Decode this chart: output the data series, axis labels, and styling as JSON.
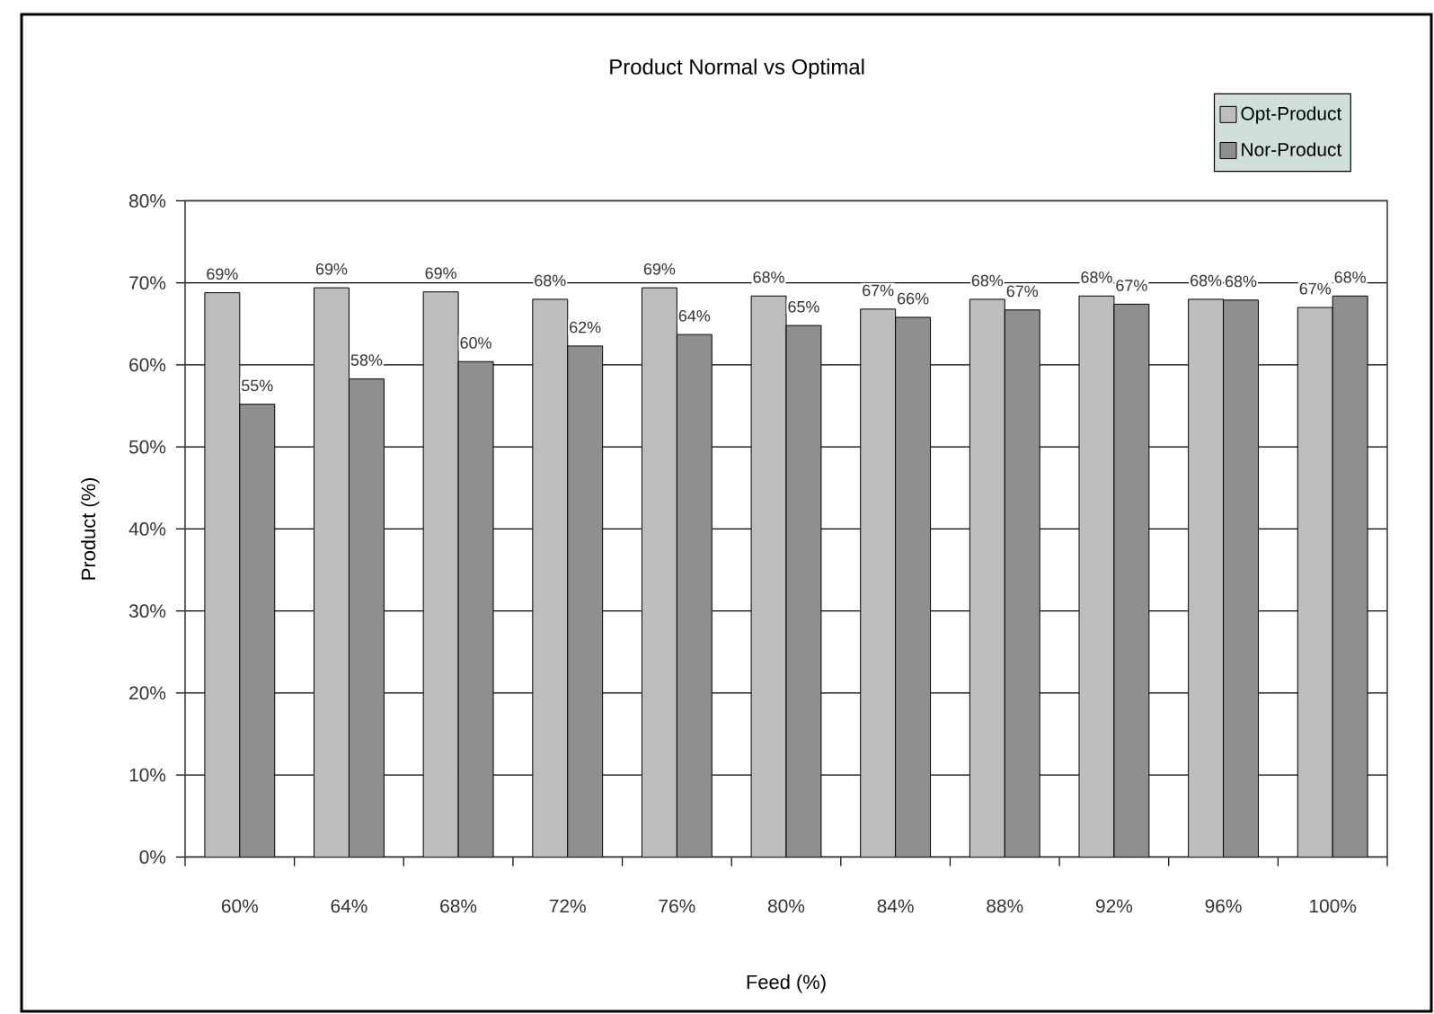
{
  "chart_data": {
    "type": "bar",
    "title": "Product Normal vs Optimal",
    "xlabel": "Feed (%)",
    "ylabel": "Product (%)",
    "categories": [
      "60%",
      "64%",
      "68%",
      "72%",
      "76%",
      "80%",
      "84%",
      "88%",
      "92%",
      "96%",
      "100%"
    ],
    "series": [
      {
        "name": "Opt-Product",
        "color": "#bdbdbd",
        "values": [
          68.8,
          69.4,
          68.9,
          68.0,
          69.4,
          68.4,
          66.8,
          68.0,
          68.4,
          68.0,
          67.0
        ],
        "value_labels": [
          "69%",
          "69%",
          "69%",
          "68%",
          "69%",
          "68%",
          "67%",
          "68%",
          "68%",
          "68%",
          "67%"
        ]
      },
      {
        "name": "Nor-Product",
        "color": "#8f8f8f",
        "values": [
          55.2,
          58.3,
          60.4,
          62.3,
          63.7,
          64.8,
          65.8,
          66.7,
          67.4,
          67.9,
          68.4
        ],
        "value_labels": [
          "55%",
          "58%",
          "60%",
          "62%",
          "64%",
          "65%",
          "66%",
          "67%",
          "67%",
          "68%",
          "68%"
        ]
      }
    ],
    "ylim": [
      0,
      80
    ],
    "yticks": [
      {
        "value": 0,
        "label": "0%"
      },
      {
        "value": 10,
        "label": "10%"
      },
      {
        "value": 20,
        "label": "20%"
      },
      {
        "value": 30,
        "label": "30%"
      },
      {
        "value": 40,
        "label": "40%"
      },
      {
        "value": 50,
        "label": "50%"
      },
      {
        "value": 60,
        "label": "60%"
      },
      {
        "value": 70,
        "label": "70%"
      },
      {
        "value": 80,
        "label": "80%"
      }
    ],
    "grid": "y",
    "legend": "top right"
  }
}
